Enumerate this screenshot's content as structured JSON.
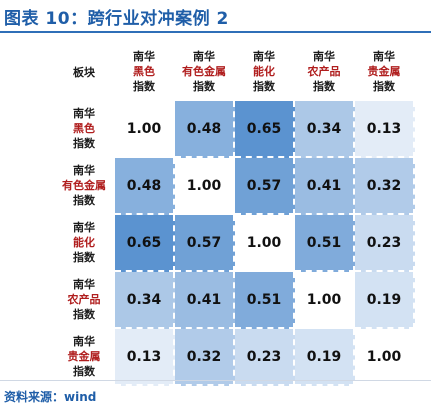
{
  "title": "图表 10：跨行业对冲案例 2",
  "source": "资料来源：wind",
  "chart_data": {
    "type": "heatmap",
    "title": "图表 10：跨行业对冲案例 2",
    "corner_label": "板块",
    "labels": [
      {
        "prefix": "南华",
        "name": "黑色",
        "suffix": "指数"
      },
      {
        "prefix": "南华",
        "name": "有色金属",
        "suffix": "指数"
      },
      {
        "prefix": "南华",
        "name": "能化",
        "suffix": "指数"
      },
      {
        "prefix": "南华",
        "name": "农产品",
        "suffix": "指数"
      },
      {
        "prefix": "南华",
        "name": "贵金属",
        "suffix": "指数"
      }
    ],
    "matrix": [
      [
        1.0,
        0.48,
        0.65,
        0.34,
        0.13
      ],
      [
        0.48,
        1.0,
        0.57,
        0.41,
        0.32
      ],
      [
        0.65,
        0.57,
        1.0,
        0.51,
        0.23
      ],
      [
        0.34,
        0.41,
        0.51,
        1.0,
        0.19
      ],
      [
        0.13,
        0.32,
        0.23,
        0.19,
        1.0
      ]
    ],
    "diagonal_color": "#ffffff",
    "color_low": "#e3ecf7",
    "color_high": "#5b93d0",
    "value_range": [
      0.13,
      0.65
    ]
  }
}
